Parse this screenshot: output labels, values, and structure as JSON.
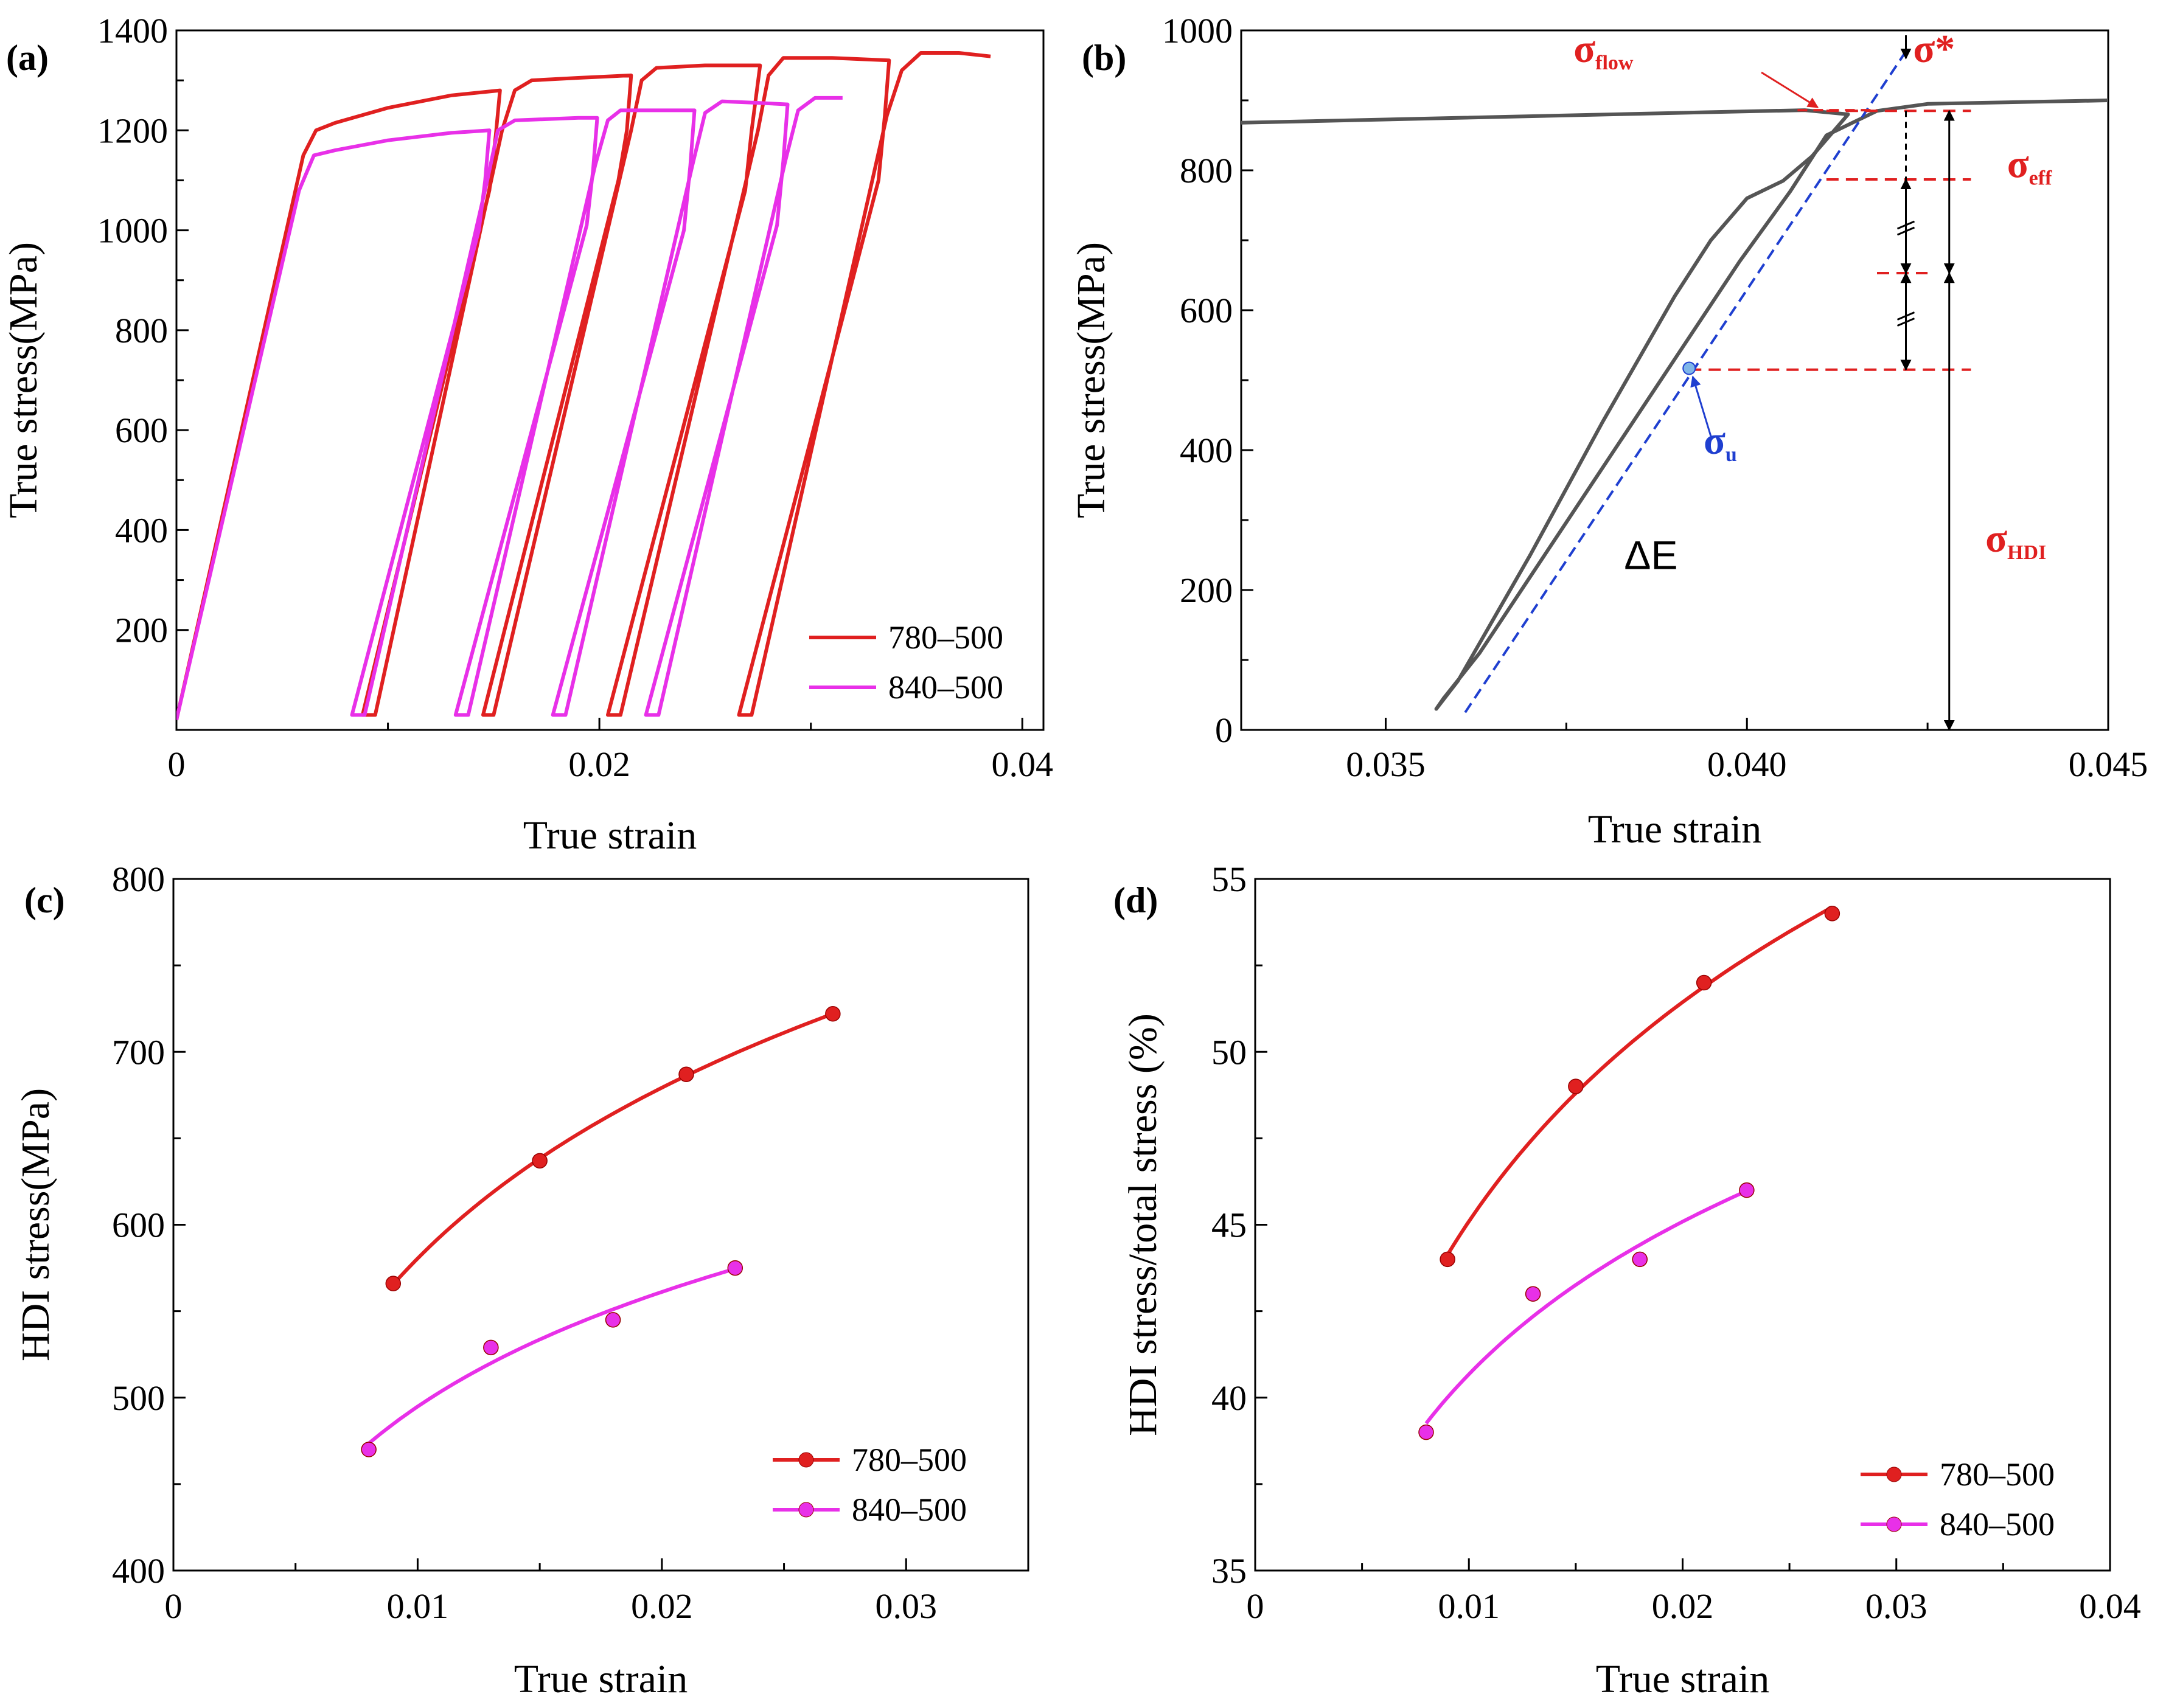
{
  "chart_data": [
    {
      "panel": "(a)",
      "type": "line",
      "xlabel": "True strain",
      "ylabel": "True  stress(MPa)",
      "xlim": [
        0,
        0.041
      ],
      "ylim": [
        0,
        1400
      ],
      "x_ticks": [
        0,
        0.02,
        0.04
      ],
      "x_tick_labels": [
        "0",
        "0.02",
        "0.04"
      ],
      "y_ticks": [
        200,
        400,
        600,
        800,
        1000,
        1200,
        1400
      ],
      "y_tick_labels": [
        "200",
        "400",
        "600",
        "800",
        "1000",
        "1200",
        "1400"
      ],
      "legend_position": "bottom-right",
      "grid": false,
      "series": [
        {
          "name": "780–500",
          "color": "#e02020",
          "points": [
            [
              0,
              20
            ],
            [
              0.006,
              1150
            ],
            [
              0.0066,
              1200
            ],
            [
              0.0075,
              1215
            ],
            [
              0.01,
              1245
            ],
            [
              0.013,
              1270
            ],
            [
              0.0153,
              1280
            ],
            [
              0.0151,
              1190
            ],
            [
              0.0148,
              1080
            ],
            [
              0.0088,
              30
            ],
            [
              0.0094,
              30
            ],
            [
              0.0154,
              1200
            ],
            [
              0.016,
              1280
            ],
            [
              0.0168,
              1300
            ],
            [
              0.019,
              1305
            ],
            [
              0.0215,
              1310
            ],
            [
              0.0213,
              1200
            ],
            [
              0.0209,
              1100
            ],
            [
              0.0145,
              30
            ],
            [
              0.015,
              30
            ],
            [
              0.0215,
              1200
            ],
            [
              0.022,
              1300
            ],
            [
              0.0227,
              1325
            ],
            [
              0.025,
              1330
            ],
            [
              0.0276,
              1330
            ],
            [
              0.0272,
              1200
            ],
            [
              0.0269,
              1080
            ],
            [
              0.0204,
              30
            ],
            [
              0.021,
              30
            ],
            [
              0.0275,
              1200
            ],
            [
              0.028,
              1310
            ],
            [
              0.0287,
              1345
            ],
            [
              0.031,
              1345
            ],
            [
              0.0337,
              1340
            ],
            [
              0.0335,
              1230
            ],
            [
              0.0332,
              1100
            ],
            [
              0.0266,
              30
            ],
            [
              0.0272,
              30
            ],
            [
              0.0336,
              1230
            ],
            [
              0.0343,
              1320
            ],
            [
              0.0352,
              1355
            ],
            [
              0.037,
              1355
            ],
            [
              0.0385,
              1348
            ]
          ]
        },
        {
          "name": "840–500",
          "color": "#e830e8",
          "points": [
            [
              0,
              20
            ],
            [
              0.0058,
              1080
            ],
            [
              0.0065,
              1150
            ],
            [
              0.0075,
              1160
            ],
            [
              0.01,
              1180
            ],
            [
              0.013,
              1195
            ],
            [
              0.0148,
              1200
            ],
            [
              0.0146,
              1100
            ],
            [
              0.0143,
              1000
            ],
            [
              0.0083,
              30
            ],
            [
              0.0089,
              30
            ],
            [
              0.0147,
              1100
            ],
            [
              0.0152,
              1200
            ],
            [
              0.016,
              1220
            ],
            [
              0.019,
              1225
            ],
            [
              0.0199,
              1225
            ],
            [
              0.0197,
              1120
            ],
            [
              0.0194,
              1010
            ],
            [
              0.0132,
              30
            ],
            [
              0.0138,
              30
            ],
            [
              0.0198,
              1130
            ],
            [
              0.0204,
              1220
            ],
            [
              0.021,
              1240
            ],
            [
              0.023,
              1240
            ],
            [
              0.0245,
              1240
            ],
            [
              0.0243,
              1130
            ],
            [
              0.024,
              1000
            ],
            [
              0.0178,
              30
            ],
            [
              0.0184,
              30
            ],
            [
              0.0244,
              1130
            ],
            [
              0.025,
              1235
            ],
            [
              0.0258,
              1258
            ],
            [
              0.0275,
              1255
            ],
            [
              0.0289,
              1252
            ],
            [
              0.0287,
              1140
            ],
            [
              0.0284,
              1010
            ],
            [
              0.0222,
              30
            ],
            [
              0.0228,
              30
            ],
            [
              0.0288,
              1140
            ],
            [
              0.0294,
              1240
            ],
            [
              0.0302,
              1265
            ],
            [
              0.0315,
              1265
            ]
          ]
        }
      ]
    },
    {
      "panel": "(b)",
      "type": "line",
      "xlabel": "True strain",
      "ylabel": "True  stress(MPa)",
      "xlim": [
        0.033,
        0.045
      ],
      "ylim": [
        0,
        1000
      ],
      "x_ticks": [
        0.035,
        0.04,
        0.045
      ],
      "x_tick_labels": [
        "0.035",
        "0.040",
        "0.045"
      ],
      "y_ticks": [
        0,
        200,
        400,
        600,
        800,
        1000
      ],
      "y_tick_labels": [
        "0",
        "200",
        "400",
        "600",
        "800",
        "1000"
      ],
      "grid": false,
      "series": [
        {
          "name": "",
          "color": "#555555",
          "points": [
            [
              0.033,
              868
            ],
            [
              0.036,
              875
            ],
            [
              0.039,
              882
            ],
            [
              0.0408,
              886
            ],
            [
              0.0414,
              880
            ],
            [
              0.0409,
              820
            ],
            [
              0.0405,
              785
            ],
            [
              0.04,
              760
            ],
            [
              0.0395,
              700
            ],
            [
              0.039,
              620
            ],
            [
              0.0385,
              530
            ],
            [
              0.038,
              440
            ],
            [
              0.0375,
              345
            ],
            [
              0.037,
              250
            ],
            [
              0.0365,
              160
            ],
            [
              0.036,
              70
            ],
            [
              0.0357,
              30
            ],
            [
              0.0358,
              45
            ],
            [
              0.0363,
              110
            ],
            [
              0.0372,
              250
            ],
            [
              0.0381,
              390
            ],
            [
              0.039,
              530
            ],
            [
              0.0399,
              670
            ],
            [
              0.0406,
              770
            ],
            [
              0.0411,
              850
            ],
            [
              0.0418,
              885
            ],
            [
              0.0425,
              895
            ],
            [
              0.045,
              900
            ]
          ]
        }
      ],
      "annotations": {
        "sigma_flow": "σ",
        "sigma_flow_sub": "flow",
        "sigma_star": "σ*",
        "sigma_eff": "σ",
        "sigma_eff_sub": "eff",
        "sigma_hdi": "σ",
        "sigma_hdi_sub": "HDI",
        "sigma_u": "σ",
        "sigma_u_sub": "u",
        "delta_e": "ΔE",
        "tangent_line": [
          [
            0.0361,
            25
          ],
          [
            0.0422,
            970
          ]
        ],
        "point_u": [
          0.0392,
          517
        ],
        "dashed_levels": [
          885,
          787,
          653,
          515
        ],
        "arrow_x_star": 0.0422,
        "arrow_x_hdi": 0.0428
      }
    },
    {
      "panel": "(c)",
      "type": "scatter",
      "xlabel": "True strain",
      "ylabel": "HDI stress(MPa)",
      "xlim": [
        0,
        0.035
      ],
      "ylim": [
        400,
        800
      ],
      "x_ticks": [
        0,
        0.01,
        0.02,
        0.03
      ],
      "x_tick_labels": [
        "0",
        "0.01",
        "0.02",
        "0.03"
      ],
      "y_ticks": [
        400,
        500,
        600,
        700,
        800
      ],
      "y_tick_labels": [
        "400",
        "500",
        "600",
        "700",
        "800"
      ],
      "legend_position": "bottom-right",
      "grid": false,
      "series": [
        {
          "name": "780–500",
          "color": "#e02020",
          "x": [
            0.009,
            0.015,
            0.021,
            0.027
          ],
          "y": [
            566,
            637,
            687,
            722
          ]
        },
        {
          "name": "840–500",
          "color": "#e830e8",
          "x": [
            0.008,
            0.013,
            0.018,
            0.023
          ],
          "y": [
            470,
            529,
            545,
            575
          ]
        }
      ]
    },
    {
      "panel": "(d)",
      "type": "scatter",
      "xlabel": "True strain",
      "ylabel": "HDI stress/total stress (%)",
      "xlim": [
        0,
        0.04
      ],
      "ylim": [
        35,
        55
      ],
      "x_ticks": [
        0,
        0.01,
        0.02,
        0.03,
        0.04
      ],
      "x_tick_labels": [
        "0",
        "0.01",
        "0.02",
        "0.03",
        "0.04"
      ],
      "y_ticks": [
        35,
        40,
        45,
        50,
        55
      ],
      "y_tick_labels": [
        "35",
        "40",
        "45",
        "50",
        "55"
      ],
      "legend_position": "bottom-right",
      "grid": false,
      "series": [
        {
          "name": "780–500",
          "color": "#e02020",
          "x": [
            0.009,
            0.015,
            0.021,
            0.027
          ],
          "y": [
            44,
            49,
            52,
            54
          ]
        },
        {
          "name": "840–500",
          "color": "#e830e8",
          "x": [
            0.008,
            0.013,
            0.018,
            0.023
          ],
          "y": [
            39,
            43,
            44,
            46
          ]
        }
      ]
    }
  ]
}
